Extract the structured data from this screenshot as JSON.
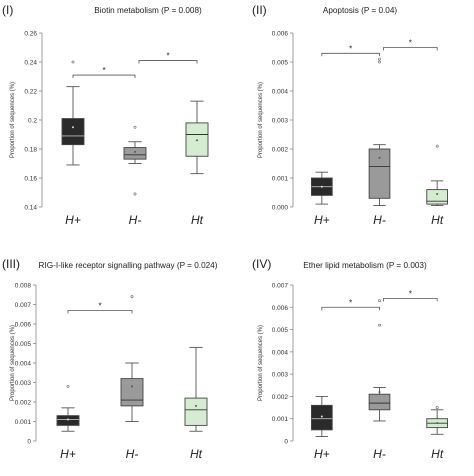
{
  "figure": {
    "panels": [
      {
        "label": "(I)",
        "title": "Biotin metabolism (P = 0.008)"
      },
      {
        "label": "(II)",
        "title": "Apoptosis (P = 0.04)"
      },
      {
        "label": "(III)",
        "title": "RIG-I-like receptor signalling pathway (P = 0.024)"
      },
      {
        "label": "(IV)",
        "title": "Ether lipid metabolism (P = 0.003)"
      }
    ]
  },
  "chart_data": [
    {
      "type": "box",
      "title": "Biotin metabolism (P = 0.008)",
      "ylabel": "Proportion of sequences (%)",
      "ylim": [
        0.14,
        0.26
      ],
      "yticks": [
        "0.14",
        "0.16",
        "0.18",
        "0.2",
        "0.22",
        "0.24",
        "0.26"
      ],
      "categories": [
        "H+",
        "H-",
        "Ht"
      ],
      "colors": [
        "#2a2a2a",
        "#9a9a9a",
        "#d6ecd2"
      ],
      "series": [
        {
          "min": 0.169,
          "q1": 0.183,
          "median": 0.189,
          "q3": 0.201,
          "max": 0.223,
          "mean": 0.195,
          "outliers": [
            0.24
          ]
        },
        {
          "min": 0.17,
          "q1": 0.173,
          "median": 0.176,
          "q3": 0.181,
          "max": 0.185,
          "mean": 0.178,
          "outliers": [
            0.195,
            0.149
          ]
        },
        {
          "min": 0.163,
          "q1": 0.175,
          "median": 0.19,
          "q3": 0.198,
          "max": 0.213,
          "mean": 0.186,
          "outliers": []
        }
      ],
      "significance": [
        {
          "from": 0,
          "to": 1,
          "y": 0.231,
          "label": "*"
        },
        {
          "from": 1,
          "to": 2,
          "y": 0.241,
          "label": "*"
        }
      ]
    },
    {
      "type": "box",
      "title": "Apoptosis (P = 0.04)",
      "ylabel": "Proportion of sequences (%)",
      "ylim": [
        0,
        0.006
      ],
      "yticks": [
        "0.000",
        "0.001",
        "0.002",
        "0.003",
        "0.004",
        "0.005",
        "0.006"
      ],
      "categories": [
        "H+",
        "H-",
        "Ht"
      ],
      "colors": [
        "#2a2a2a",
        "#9a9a9a",
        "#d6ecd2"
      ],
      "series": [
        {
          "min": 0.0001,
          "q1": 0.0004,
          "median": 0.0007,
          "q3": 0.001,
          "max": 0.0012,
          "mean": 0.0007,
          "outliers": []
        },
        {
          "min": 5e-05,
          "q1": 0.0003,
          "median": 0.0014,
          "q3": 0.002,
          "max": 0.00215,
          "mean": 0.0017,
          "outliers": [
            0.005,
            0.0051
          ]
        },
        {
          "min": 5e-05,
          "q1": 0.0001,
          "median": 0.0002,
          "q3": 0.0006,
          "max": 0.0009,
          "mean": 0.00045,
          "outliers": [
            0.0021
          ]
        }
      ],
      "significance": [
        {
          "from": 0,
          "to": 1,
          "y": 0.0053,
          "label": "*"
        },
        {
          "from": 1,
          "to": 2,
          "y": 0.0055,
          "label": "*"
        }
      ]
    },
    {
      "type": "box",
      "title": "RIG-I-like receptor signalling pathway (P = 0.024)",
      "ylabel": "Proportion of sequences (%)",
      "ylim": [
        0,
        0.008
      ],
      "yticks": [
        "0",
        "0.001",
        "0.002",
        "0.003",
        "0.004",
        "0.005",
        "0.006",
        "0.007",
        "0.008"
      ],
      "categories": [
        "H+",
        "H-",
        "Ht"
      ],
      "colors": [
        "#2a2a2a",
        "#9a9a9a",
        "#d6ecd2"
      ],
      "series": [
        {
          "min": 0.0005,
          "q1": 0.0008,
          "median": 0.0011,
          "q3": 0.0013,
          "max": 0.0017,
          "mean": 0.0011,
          "outliers": [
            0.0028
          ]
        },
        {
          "min": 0.001,
          "q1": 0.0018,
          "median": 0.0021,
          "q3": 0.0032,
          "max": 0.004,
          "mean": 0.0028,
          "outliers": [
            0.0074
          ]
        },
        {
          "min": 0.0005,
          "q1": 0.0008,
          "median": 0.0016,
          "q3": 0.0022,
          "max": 0.0048,
          "mean": 0.0018,
          "outliers": []
        }
      ],
      "significance": [
        {
          "from": 0,
          "to": 1,
          "y": 0.0067,
          "label": "*"
        }
      ]
    },
    {
      "type": "box",
      "title": "Ether lipid metabolism (P = 0.003)",
      "ylabel": "Proportion of sequences (%)",
      "ylim": [
        0,
        0.007
      ],
      "yticks": [
        "0",
        "0.001",
        "0.002",
        "0.003",
        "0.004",
        "0.005",
        "0.006",
        "0.007"
      ],
      "categories": [
        "H+",
        "H-",
        "Ht"
      ],
      "colors": [
        "#2a2a2a",
        "#9a9a9a",
        "#d6ecd2"
      ],
      "series": [
        {
          "min": 0.0002,
          "q1": 0.0005,
          "median": 0.001,
          "q3": 0.0016,
          "max": 0.002,
          "mean": 0.0011,
          "outliers": []
        },
        {
          "min": 0.0009,
          "q1": 0.0014,
          "median": 0.0017,
          "q3": 0.0021,
          "max": 0.0024,
          "mean": 0.0022,
          "outliers": [
            0.0052,
            0.0063
          ]
        },
        {
          "min": 0.0003,
          "q1": 0.0006,
          "median": 0.0008,
          "q3": 0.001,
          "max": 0.0014,
          "mean": 0.0008,
          "outliers": [
            0.0015
          ]
        }
      ],
      "significance": [
        {
          "from": 0,
          "to": 1,
          "y": 0.006,
          "label": "*"
        },
        {
          "from": 1,
          "to": 2,
          "y": 0.0064,
          "label": "*"
        }
      ]
    }
  ]
}
